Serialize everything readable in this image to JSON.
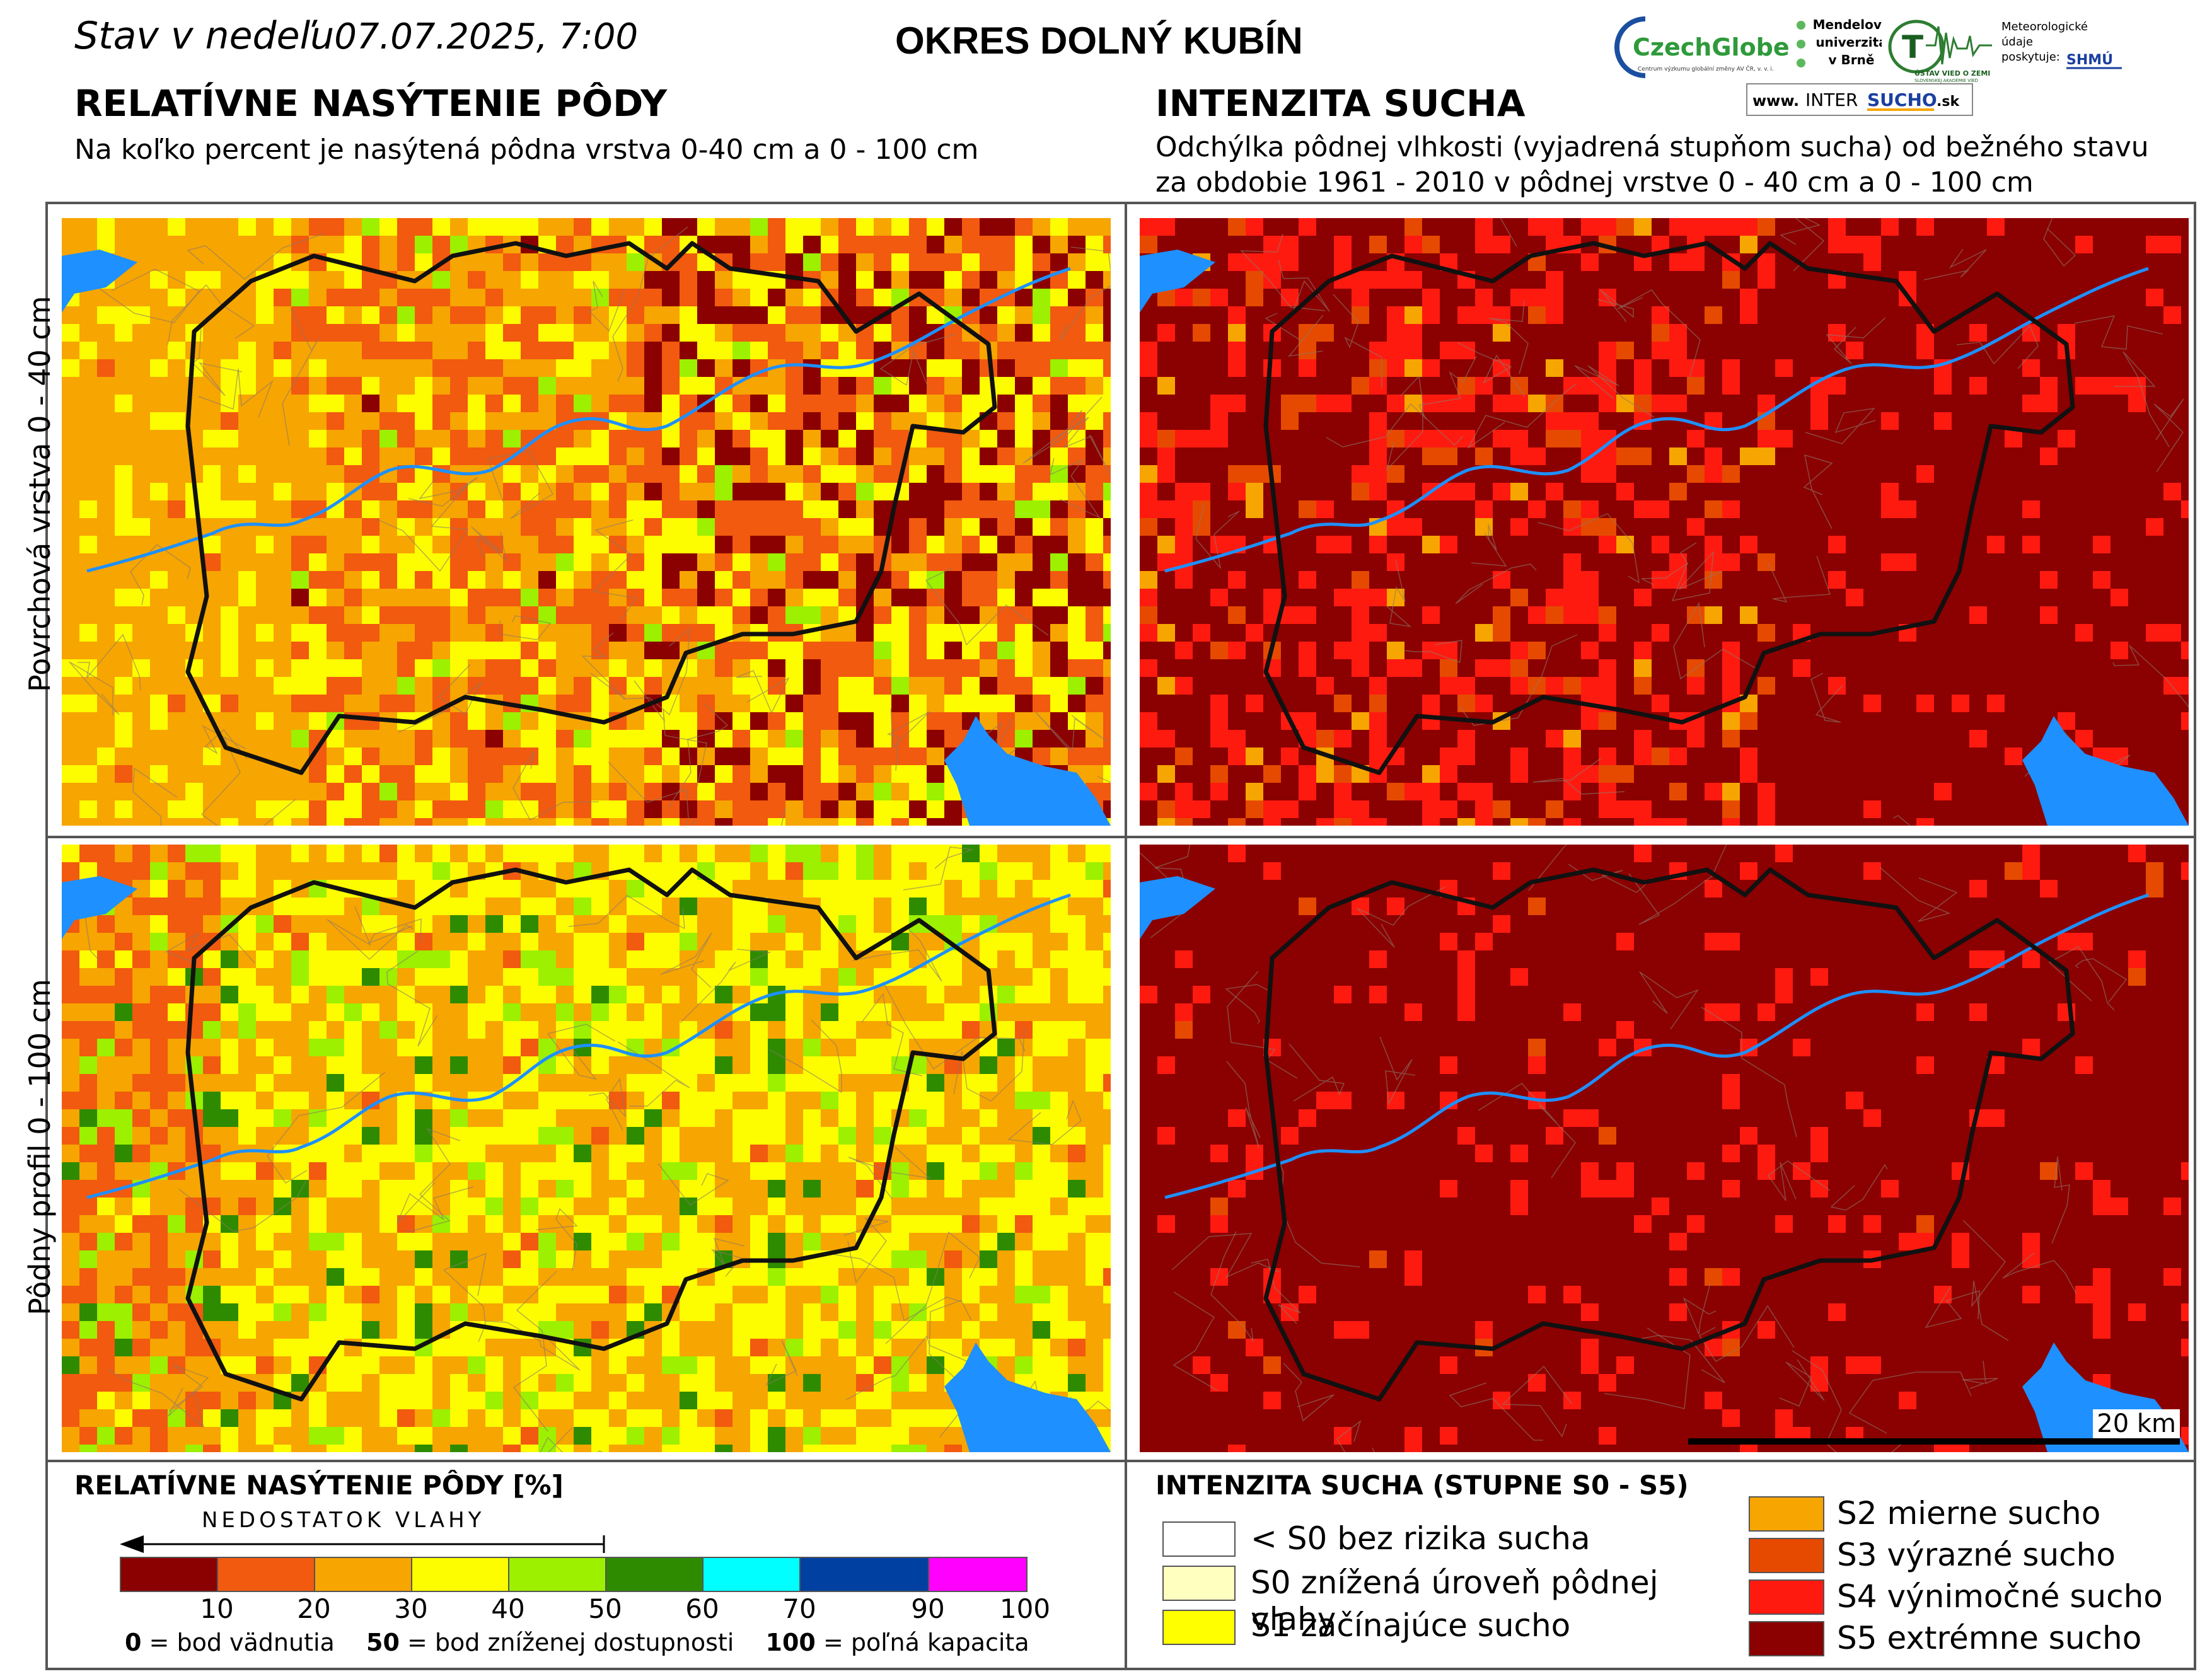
{
  "header": {
    "date_prefix": "Stav v nedeľu",
    "date_value": "07.07.2025, 7:00",
    "district": "OKRES  DOLNÝ KUBÍN"
  },
  "logos": {
    "czechglobe": "CzechGlobe",
    "czechglobe_sub": "Centrum výzkumu globální změny AV ČR, v. v. i.",
    "mendel": [
      "Mendelova",
      "univerzita",
      "v Brně"
    ],
    "usv": "ÚSTAV VIED O ZEMI",
    "usv_sub": "SLOVENSKEJ AKADÉMIE VIED",
    "meteo": [
      "Meteorologické",
      "údaje",
      "poskytuje:"
    ],
    "shmu": "SHMÚ",
    "intersucho": [
      "www. ",
      "INTER",
      "SUCHO",
      " .sk"
    ]
  },
  "left_section": {
    "title": "RELATÍVNE NASÝTENIE PÔDY",
    "subtitle": "Na koľko percent je nasýtená pôdna vrstva 0-40 cm a 0 - 100 cm"
  },
  "right_section": {
    "title": "INTENZITA SUCHA",
    "subtitle_line1": "Odchýlka pôdnej vlhkosti (vyjadrená stupňom sucha) od bežného stavu",
    "subtitle_line2": "za obdobie 1961 - 2010 v pôdnej vrstve 0 - 40 cm a 0 - 100 cm"
  },
  "row_labels": {
    "top": "Povrchová vrstva 0 - 40 cm",
    "bottom": "Pôdny profil 0 - 100 cm"
  },
  "scale_bar": "20 km",
  "legend_left": {
    "title": "RELATÍVNE NASÝTENIE PÔDY [%]",
    "arrow_label": "NEDOSTATOK VLAHY",
    "colors": [
      "#8b0000",
      "#f15a0f",
      "#f7a500",
      "#fdfd00",
      "#9cf000",
      "#2e8b00",
      "#00ffff",
      "#0040a0",
      "#ff00ff"
    ],
    "ticks": [
      "10",
      "20",
      "30",
      "40",
      "50",
      "60",
      "70",
      "90",
      "100"
    ],
    "notes": [
      {
        "num": "0",
        "text": " = bod vädnutia"
      },
      {
        "num": "50",
        "text": " = bod zníženej dostupnosti"
      },
      {
        "num": "100",
        "text": " = poľná kapacita"
      }
    ]
  },
  "legend_right": {
    "title": "INTENZITA SUCHA (STUPNE S0 - S5)",
    "items": [
      {
        "label": "< S0 bez rizika sucha",
        "color": "#ffffff"
      },
      {
        "label": "S0 znížená úroveň pôdnej vlahy",
        "color": "#ffffc0"
      },
      {
        "label": "S1 začínajúce sucho",
        "color": "#ffff00"
      },
      {
        "label": "S2 mierne sucho",
        "color": "#f7a500"
      },
      {
        "label": "S3 výrazné sucho",
        "color": "#e64a00"
      },
      {
        "label": "S4 výnimočné sucho",
        "color": "#ff1a10"
      },
      {
        "label": "S5 extrémne sucho",
        "color": "#8b0000"
      }
    ]
  },
  "colors": {
    "water": "#1e90ff",
    "border": "#111111",
    "frame": "#555555"
  }
}
